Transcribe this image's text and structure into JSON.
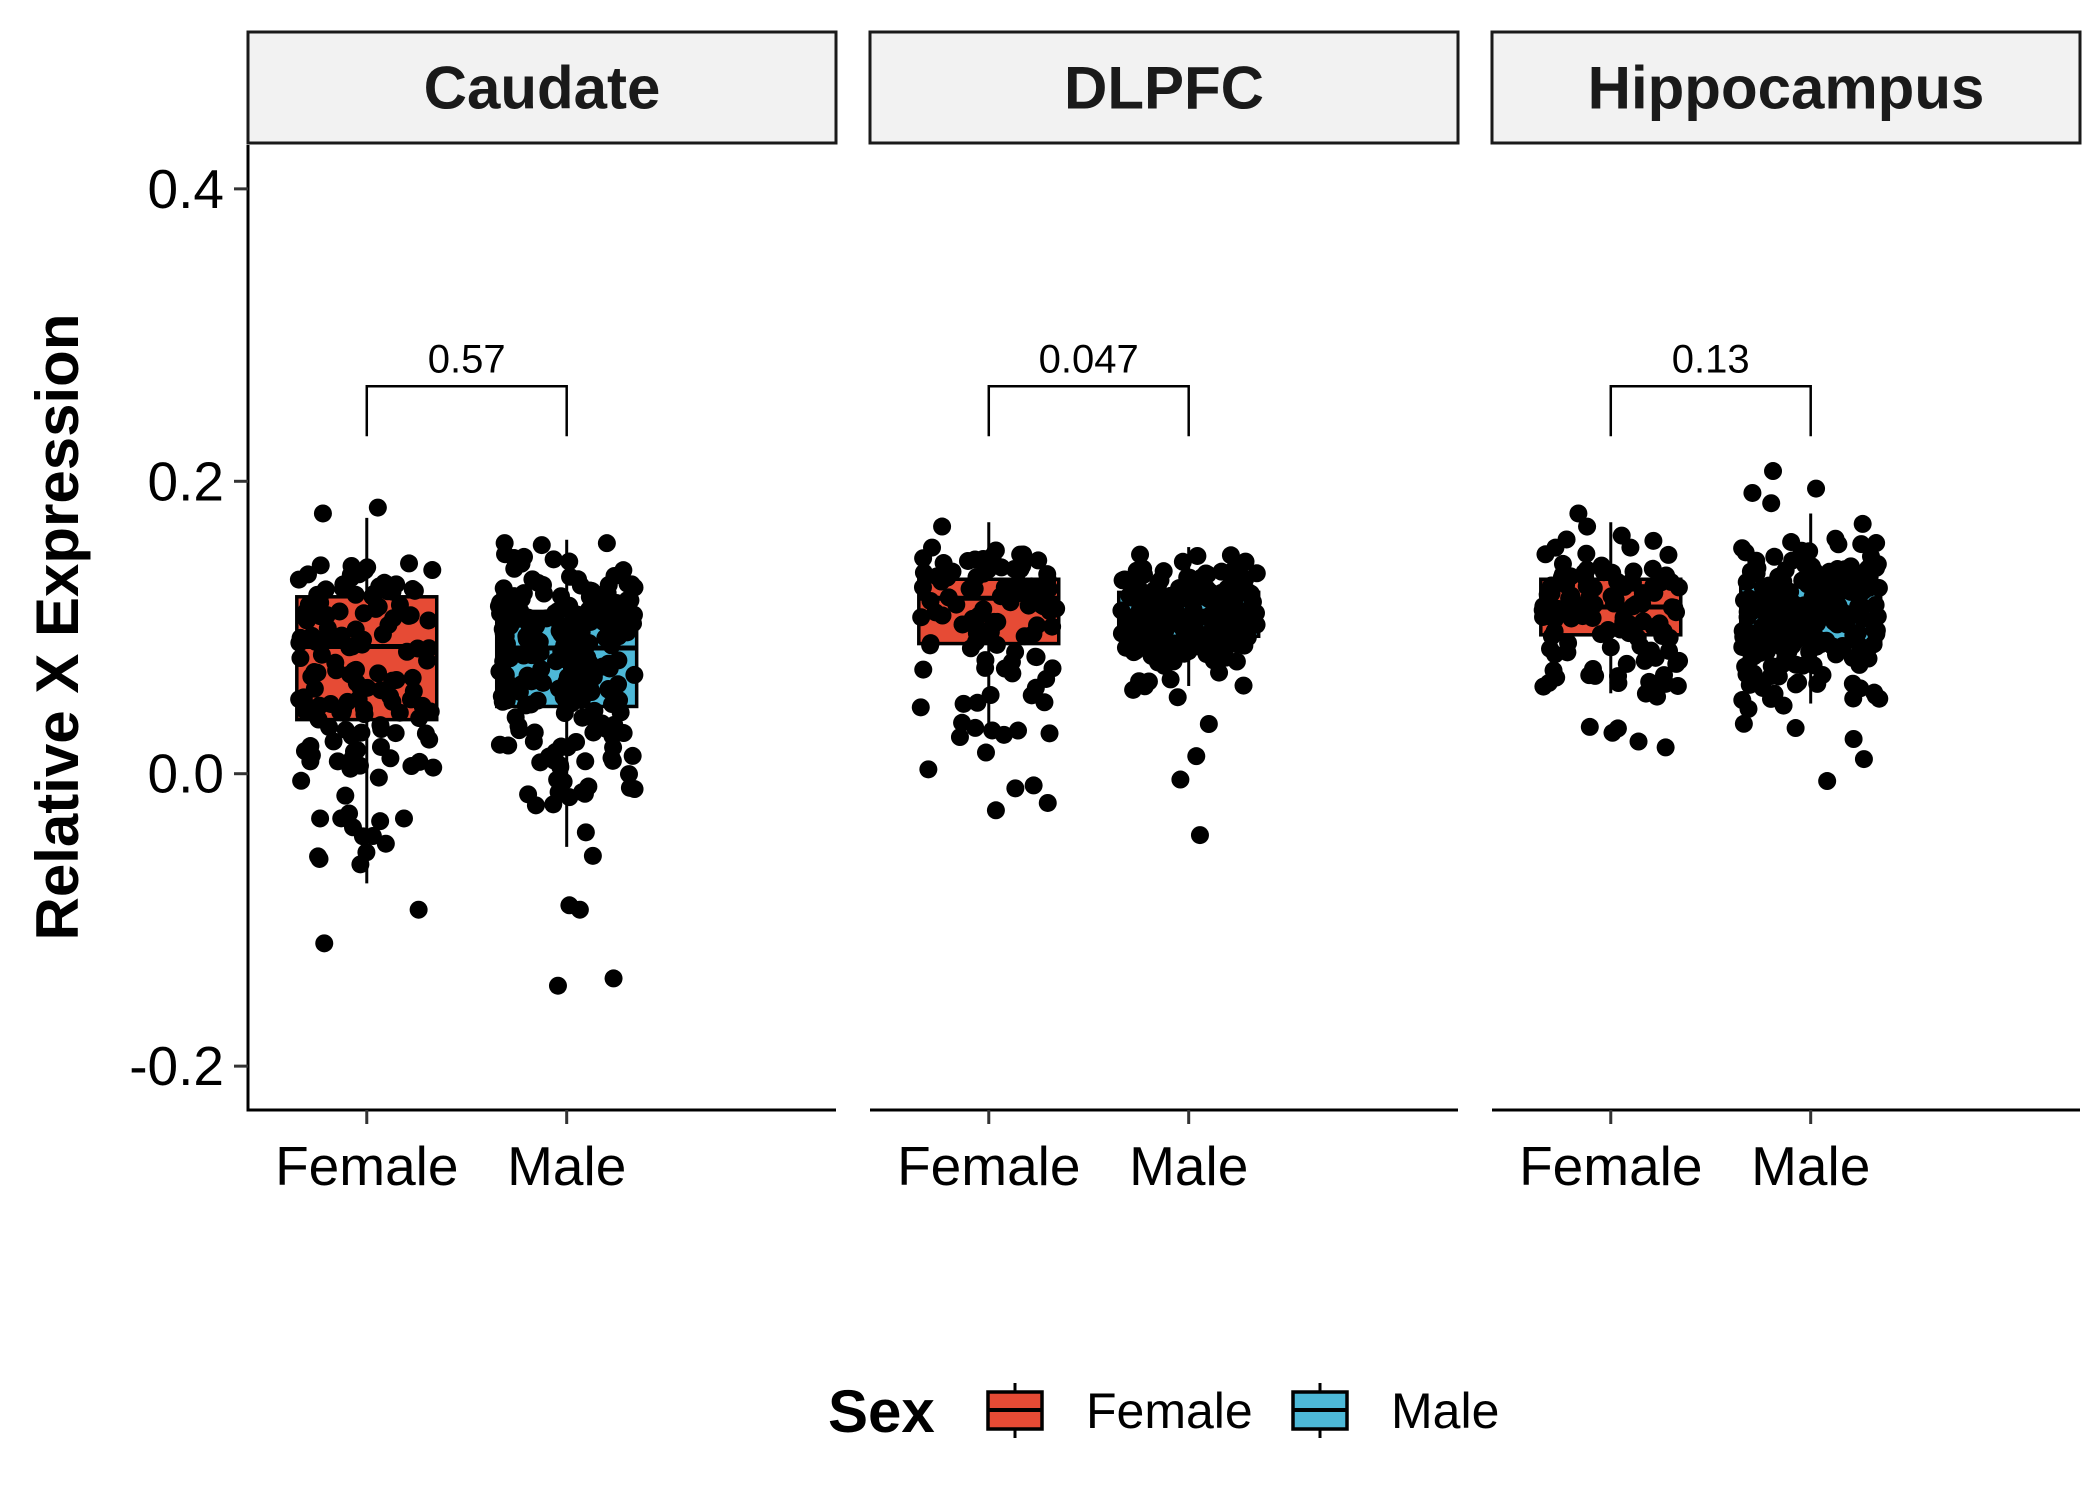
{
  "chart_data": {
    "type": "boxplot",
    "ylabel": "Relative X Expression",
    "ylim": [
      -0.23,
      0.43
    ],
    "y_ticks": [
      {
        "value": -0.2,
        "label": "-0.2"
      },
      {
        "value": 0.0,
        "label": "0.0"
      },
      {
        "value": 0.2,
        "label": "0.2"
      },
      {
        "value": 0.4,
        "label": "0.4"
      }
    ],
    "legend": {
      "title": "Sex",
      "position": "bottom",
      "items": [
        {
          "label": "Female",
          "color": "#e64b35"
        },
        {
          "label": "Male",
          "color": "#4db8d7"
        }
      ]
    },
    "bracket_height": 0.265,
    "panels": [
      {
        "strip": "Caudate",
        "p_value": "0.57",
        "groups": [
          {
            "label": "Female",
            "color": "#e64b35",
            "q1": 0.037,
            "median": 0.087,
            "q3": 0.121,
            "whisker_low": -0.075,
            "whisker_high": 0.175,
            "points": {
              "n": 150,
              "seed": 11,
              "lo": -0.075,
              "hi": 0.155,
              "extra": [
                -0.116,
                -0.093,
                0.178,
                0.182,
                -0.062
              ]
            }
          },
          {
            "label": "Male",
            "color": "#4db8d7",
            "q1": 0.046,
            "median": 0.086,
            "q3": 0.111,
            "whisker_low": -0.05,
            "whisker_high": 0.16,
            "points": {
              "n": 230,
              "seed": 23,
              "lo": -0.07,
              "hi": 0.16,
              "extra": [
                -0.14,
                -0.145,
                -0.093,
                -0.09
              ]
            }
          }
        ]
      },
      {
        "strip": "DLPFC",
        "p_value": "0.047",
        "groups": [
          {
            "label": "Female",
            "color": "#e64b35",
            "q1": 0.089,
            "median": 0.12,
            "q3": 0.133,
            "whisker_low": 0.028,
            "whisker_high": 0.172,
            "points": {
              "n": 100,
              "seed": 37,
              "lo": 0.0,
              "hi": 0.17,
              "extra": [
                -0.025,
                -0.02,
                -0.01,
                -0.008,
                0.003
              ]
            }
          },
          {
            "label": "Male",
            "color": "#4db8d7",
            "q1": 0.094,
            "median": 0.111,
            "q3": 0.124,
            "whisker_low": 0.06,
            "whisker_high": 0.155,
            "points": {
              "n": 200,
              "seed": 41,
              "lo": 0.05,
              "hi": 0.155,
              "extra": [
                -0.042,
                -0.004,
                0.012,
                0.034
              ]
            }
          }
        ]
      },
      {
        "strip": "Hippocampus",
        "p_value": "0.13",
        "groups": [
          {
            "label": "Female",
            "color": "#e64b35",
            "q1": 0.095,
            "median": 0.114,
            "q3": 0.133,
            "whisker_low": 0.055,
            "whisker_high": 0.172,
            "points": {
              "n": 120,
              "seed": 53,
              "lo": 0.04,
              "hi": 0.17,
              "extra": [
                0.018,
                0.022,
                0.028,
                0.031,
                0.032,
                0.178
              ]
            }
          },
          {
            "label": "Male",
            "color": "#4db8d7",
            "q1": 0.09,
            "median": 0.112,
            "q3": 0.128,
            "whisker_low": 0.048,
            "whisker_high": 0.178,
            "points": {
              "n": 220,
              "seed": 67,
              "lo": 0.02,
              "hi": 0.175,
              "extra": [
                -0.005,
                0.01,
                0.185,
                0.192,
                0.195,
                0.207
              ]
            }
          }
        ]
      }
    ]
  }
}
